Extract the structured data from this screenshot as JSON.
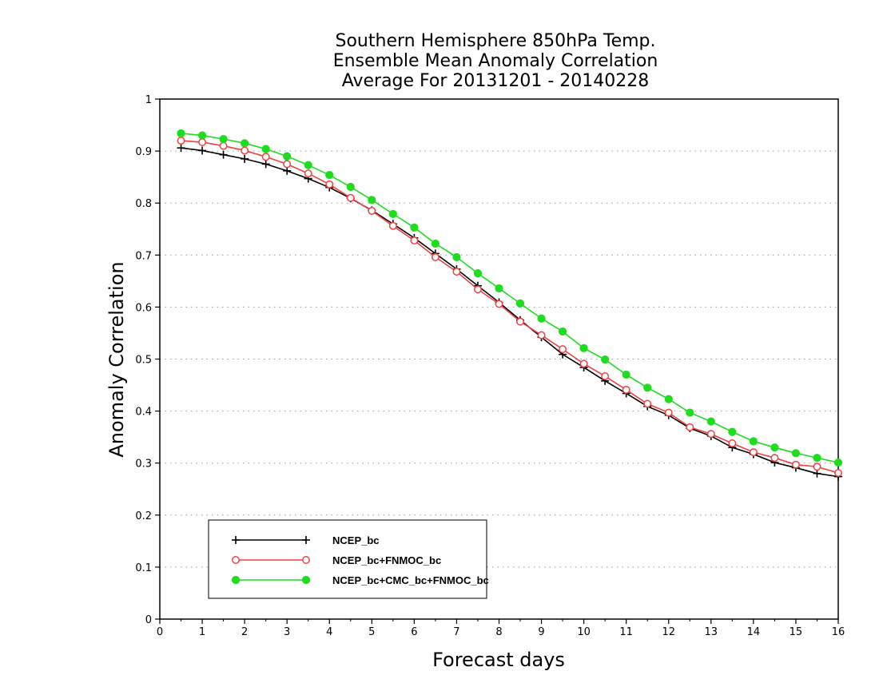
{
  "chart_data": {
    "type": "line",
    "title": [
      "Southern Hemisphere 850hPa Temp.",
      "Ensemble Mean Anomaly Correlation",
      "Average For 20131201 - 20140228"
    ],
    "xlabel": "Forecast days",
    "ylabel": "Anomaly Correlation",
    "xlim": [
      0,
      16
    ],
    "ylim": [
      0,
      1
    ],
    "xticks": [
      "0",
      "1",
      "2",
      "3",
      "4",
      "5",
      "6",
      "7",
      "8",
      "9",
      "10",
      "11",
      "12",
      "13",
      "14",
      "15",
      "16"
    ],
    "yticks": [
      "0",
      "0.1",
      "0.2",
      "0.3",
      "0.4",
      "0.5",
      "0.6",
      "0.7",
      "0.8",
      "0.9",
      "1"
    ],
    "grid": "dotted horizontal",
    "legend_position": "bottom-left",
    "x": [
      0.5,
      1,
      1.5,
      2,
      2.5,
      3,
      3.5,
      4,
      4.5,
      5,
      5.5,
      6,
      6.5,
      7,
      7.5,
      8,
      8.5,
      9,
      9.5,
      10,
      10.5,
      11,
      11.5,
      12,
      12.5,
      13,
      13.5,
      14,
      14.5,
      15,
      15.5,
      16
    ],
    "series": [
      {
        "name": "NCEP_bc",
        "color": "#000000",
        "marker": "plus",
        "values": [
          0.906,
          0.901,
          0.893,
          0.885,
          0.875,
          0.862,
          0.847,
          0.83,
          0.809,
          0.786,
          0.76,
          0.733,
          0.703,
          0.673,
          0.641,
          0.609,
          0.575,
          0.542,
          0.509,
          0.484,
          0.458,
          0.434,
          0.409,
          0.392,
          0.367,
          0.352,
          0.33,
          0.317,
          0.301,
          0.291,
          0.28,
          0.274
        ]
      },
      {
        "name": "NCEP_bc+FNMOC_bc",
        "color": "#f04040",
        "marker": "open-circle",
        "values": [
          0.92,
          0.917,
          0.91,
          0.901,
          0.889,
          0.875,
          0.857,
          0.836,
          0.81,
          0.785,
          0.756,
          0.728,
          0.696,
          0.668,
          0.634,
          0.606,
          0.572,
          0.546,
          0.519,
          0.491,
          0.467,
          0.441,
          0.414,
          0.397,
          0.369,
          0.356,
          0.338,
          0.321,
          0.31,
          0.297,
          0.293,
          0.281
        ]
      },
      {
        "name": "NCEP_bc+CMC_bc+FNMOC_bc",
        "color": "#1edc1e",
        "marker": "filled-circle",
        "values": [
          0.934,
          0.93,
          0.923,
          0.915,
          0.904,
          0.89,
          0.873,
          0.854,
          0.831,
          0.806,
          0.779,
          0.753,
          0.722,
          0.696,
          0.665,
          0.636,
          0.607,
          0.578,
          0.553,
          0.521,
          0.499,
          0.47,
          0.445,
          0.423,
          0.397,
          0.38,
          0.36,
          0.342,
          0.33,
          0.319,
          0.31,
          0.301
        ]
      }
    ]
  }
}
